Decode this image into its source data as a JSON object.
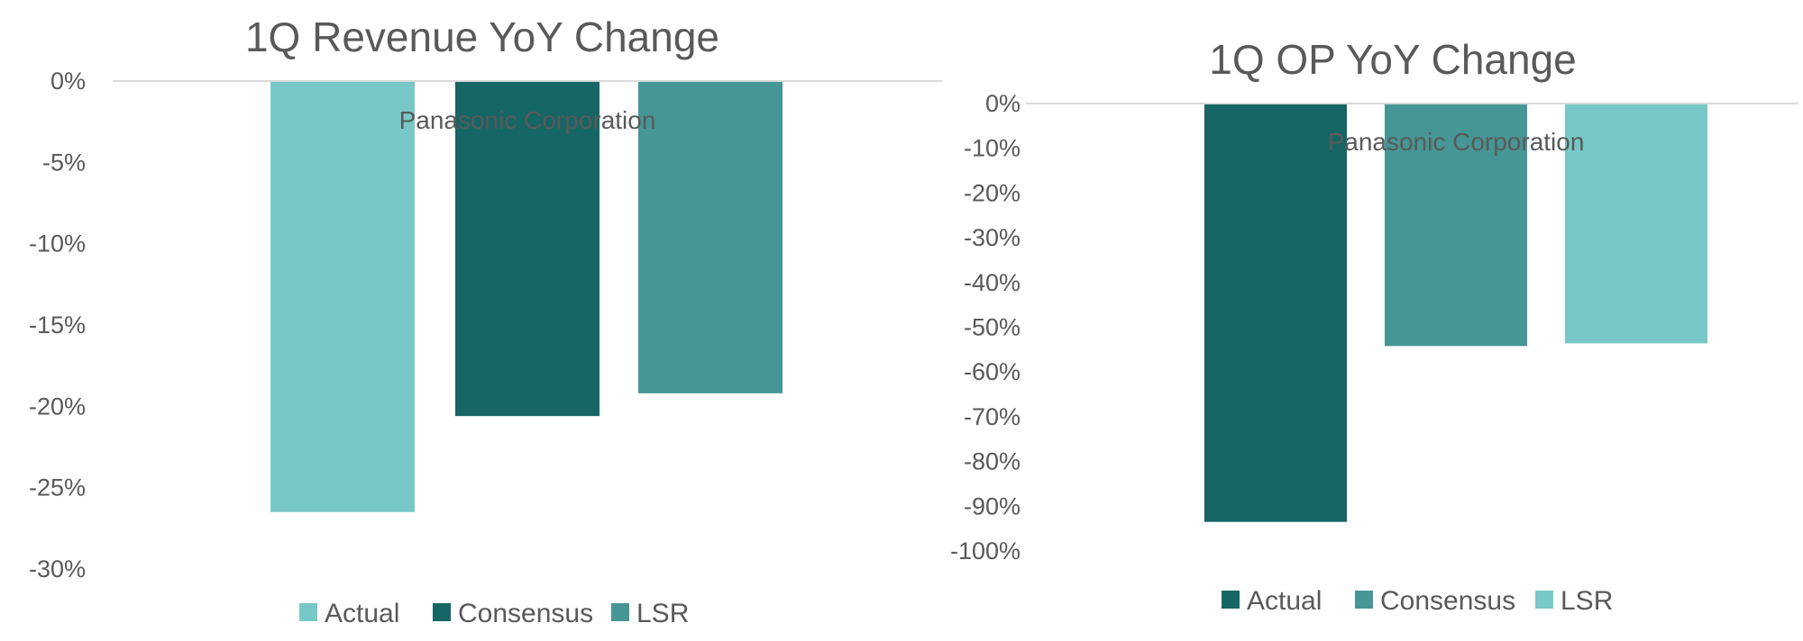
{
  "colors": {
    "light_teal": "#78C8C8",
    "dark_teal": "#156665",
    "mid_teal": "#469696",
    "text": "#595959",
    "axis_line": "#d9d9d9"
  },
  "chart_data": [
    {
      "type": "bar",
      "title": "1Q Revenue YoY Change",
      "annotation": "Panasonic Corporation",
      "categories": [
        "Actual",
        "Consensus",
        "LSR"
      ],
      "values": [
        -26.5,
        -20.6,
        -19.2
      ],
      "series_colors": [
        "#78C8C8",
        "#156665",
        "#469696"
      ],
      "ylim": [
        -30,
        0
      ],
      "yticks": [
        0,
        -5,
        -10,
        -15,
        -20,
        -25,
        -30
      ],
      "ytick_labels": [
        "0%",
        "-5%",
        "-10%",
        "-15%",
        "-20%",
        "-25%",
        "-30%"
      ],
      "legend": [
        "Actual",
        "Consensus",
        "LSR"
      ],
      "legend_position": "bottom",
      "grid": false
    },
    {
      "type": "bar",
      "title": "1Q OP YoY Change",
      "annotation": "Panasonic Corporation",
      "categories": [
        "Actual",
        "Consensus",
        "LSR"
      ],
      "values": [
        -93.5,
        -54.2,
        -53.6
      ],
      "series_colors": [
        "#156665",
        "#469696",
        "#78C8C8"
      ],
      "ylim": [
        -100,
        0
      ],
      "yticks": [
        0,
        -10,
        -20,
        -30,
        -40,
        -50,
        -60,
        -70,
        -80,
        -90,
        -100
      ],
      "ytick_labels": [
        "0%",
        "-10%",
        "-20%",
        "-30%",
        "-40%",
        "-50%",
        "-60%",
        "-70%",
        "-80%",
        "-90%",
        "-100%"
      ],
      "legend": [
        "Actual",
        "Consensus",
        "LSR"
      ],
      "legend_position": "bottom",
      "grid": false
    }
  ]
}
